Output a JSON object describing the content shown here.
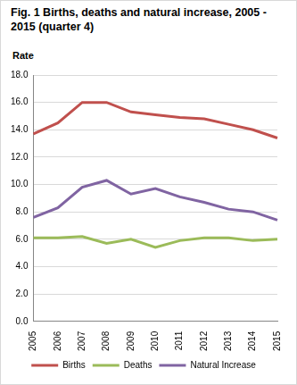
{
  "chart_data": {
    "type": "line",
    "title": "Fig. 1 Births, deaths and natural increase, 2005 - 2015 (quarter 4)",
    "y_label": "Rate",
    "categories": [
      "2005",
      "2006",
      "2007",
      "2008",
      "2009",
      "2010",
      "2011",
      "2012",
      "2013",
      "2014",
      "2015"
    ],
    "series": [
      {
        "name": "Births",
        "color": "#c0504d",
        "values": [
          13.7,
          14.5,
          16.0,
          16.0,
          15.3,
          15.1,
          14.9,
          14.8,
          14.4,
          14.0,
          13.4
        ]
      },
      {
        "name": "Deaths",
        "color": "#9bbb59",
        "values": [
          6.1,
          6.1,
          6.2,
          5.7,
          6.0,
          5.4,
          5.9,
          6.1,
          6.1,
          5.9,
          6.0
        ]
      },
      {
        "name": "Natural Increase",
        "color": "#8064a2",
        "values": [
          7.6,
          8.3,
          9.8,
          10.3,
          9.3,
          9.7,
          9.1,
          8.7,
          8.2,
          8.0,
          7.4
        ]
      }
    ],
    "ylim": [
      0,
      18
    ],
    "yticks": [
      {
        "value": 0,
        "label": "0.0"
      },
      {
        "value": 2,
        "label": "2.0"
      },
      {
        "value": 4,
        "label": "4.0"
      },
      {
        "value": 6,
        "label": "6.0"
      },
      {
        "value": 8,
        "label": "8.0"
      },
      {
        "value": 10,
        "label": "10.0"
      },
      {
        "value": 12,
        "label": "12.0"
      },
      {
        "value": 14,
        "label": "14.0"
      },
      {
        "value": 16,
        "label": "16.0"
      },
      {
        "value": 18,
        "label": "18.0"
      }
    ],
    "grid": true,
    "legend": "bottom"
  }
}
